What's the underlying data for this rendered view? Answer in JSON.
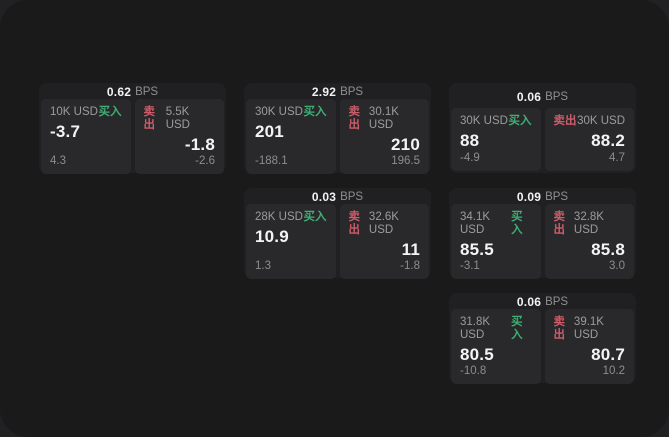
{
  "labels": {
    "bps": "BPS",
    "buy": "买入",
    "sell": "卖出"
  },
  "colors": {
    "buy": "#3fae75",
    "sell": "#cd5c6a",
    "surface": "#1a1a1b",
    "card": "#202022",
    "panel": "#29292b"
  },
  "cards": [
    {
      "bps": "0.62",
      "buy": {
        "notional": "10K USD",
        "price": "-3.7",
        "sub": "4.3"
      },
      "sell": {
        "notional": "5.5K USD",
        "price": "-1.8",
        "sub": "-2.6"
      }
    },
    {
      "bps": "2.92",
      "buy": {
        "notional": "30K USD",
        "price": "201",
        "sub": "-188.1"
      },
      "sell": {
        "notional": "30.1K USD",
        "price": "210",
        "sub": "196.5"
      }
    },
    {
      "bps": "0.06",
      "buy": {
        "notional": "30K USD",
        "price": "88",
        "sub": "-4.9"
      },
      "sell": {
        "notional": "30K USD",
        "price": "88.2",
        "sub": "4.7"
      }
    },
    {
      "bps": "0.03",
      "buy": {
        "notional": "28K USD",
        "price": "10.9",
        "sub": "1.3"
      },
      "sell": {
        "notional": "32.6K USD",
        "price": "11",
        "sub": "-1.8"
      }
    },
    {
      "bps": "0.09",
      "buy": {
        "notional": "34.1K USD",
        "price": "85.5",
        "sub": "-3.1"
      },
      "sell": {
        "notional": "32.8K USD",
        "price": "85.8",
        "sub": "3.0"
      }
    },
    {
      "bps": "0.06",
      "buy": {
        "notional": "31.8K USD",
        "price": "80.5",
        "sub": "-10.8"
      },
      "sell": {
        "notional": "39.1K USD",
        "price": "80.7",
        "sub": "10.2"
      }
    }
  ]
}
